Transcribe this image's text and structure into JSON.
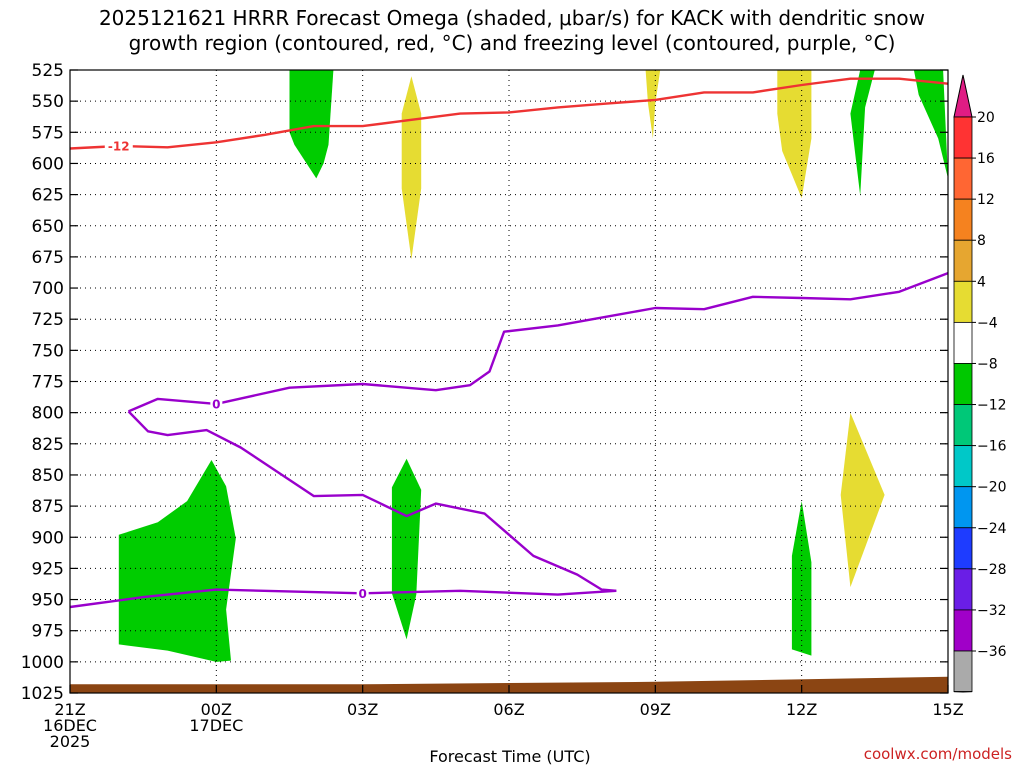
{
  "chart_data": {
    "type": "time-height cross section",
    "title": "2025121621 HRRR Forecast Omega (shaded, μbar/s) for KACK with dendritic snow",
    "title_line2": "growth region (contoured, red, °C) and freezing level (contoured, purple, °C)",
    "xlabel": "Forecast Time (UTC)",
    "credit": "coolwx.com/models",
    "x_unit": "hours after 21Z 16DEC 2025",
    "x_range": [
      0,
      18
    ],
    "x_ticks": [
      {
        "hour": 0,
        "lines": [
          "21Z",
          "16DEC",
          "2025"
        ]
      },
      {
        "hour": 3,
        "lines": [
          "00Z",
          "17DEC"
        ]
      },
      {
        "hour": 6,
        "lines": [
          "03Z"
        ]
      },
      {
        "hour": 9,
        "lines": [
          "06Z"
        ]
      },
      {
        "hour": 12,
        "lines": [
          "09Z"
        ]
      },
      {
        "hour": 15,
        "lines": [
          "12Z"
        ]
      },
      {
        "hour": 18,
        "lines": [
          "15Z"
        ]
      }
    ],
    "y_unit": "hPa",
    "y_range": [
      525,
      1025
    ],
    "y_ticks": [
      "525",
      "550",
      "575",
      "600",
      "625",
      "650",
      "675",
      "700",
      "725",
      "750",
      "775",
      "800",
      "825",
      "850",
      "875",
      "900",
      "925",
      "950",
      "975",
      "1000",
      "1025"
    ],
    "colorbar": {
      "labels": [
        "20",
        "16",
        "12",
        "8",
        "4",
        "−4",
        "−8",
        "−12",
        "−16",
        "−20",
        "−24",
        "−28",
        "−32",
        "−36"
      ],
      "colors": [
        "#ff3333",
        "#ff6633",
        "#f5821f",
        "#e6a630",
        "#e6dc32",
        "#ffffff",
        "#00c800",
        "#00c878",
        "#00c8c8",
        "#0096f0",
        "#1e3cff",
        "#6a1ee6",
        "#a000c8",
        "#aaaaaa"
      ],
      "top_cap_color": "#e01c84",
      "bottom_cap_color": "#000000"
    },
    "series": [
      {
        "name": "Red -12 C isotherm (DGZ boundary)",
        "color": "#ee3333",
        "label": "-12",
        "label_at": [
          1,
          586
        ],
        "points": [
          [
            0,
            588
          ],
          [
            1,
            586
          ],
          [
            2,
            587
          ],
          [
            3,
            583
          ],
          [
            4,
            577
          ],
          [
            5,
            570
          ],
          [
            6,
            570
          ],
          [
            7,
            565
          ],
          [
            8,
            560
          ],
          [
            9,
            559
          ],
          [
            10,
            555
          ],
          [
            11,
            552
          ],
          [
            12,
            549
          ],
          [
            13,
            543
          ],
          [
            14,
            543
          ],
          [
            15,
            537
          ],
          [
            16,
            532
          ],
          [
            17,
            532
          ],
          [
            18,
            536
          ]
        ]
      },
      {
        "name": "Freezing level 0 C (upper)",
        "color": "#9900cc",
        "label": "0",
        "label_at": [
          3,
          793
        ],
        "points": [
          [
            1.2,
            799
          ],
          [
            1.8,
            789
          ],
          [
            3,
            793
          ],
          [
            4.5,
            780
          ],
          [
            6,
            777
          ],
          [
            7.5,
            782
          ],
          [
            8.2,
            778
          ],
          [
            8.6,
            767
          ],
          [
            8.9,
            735
          ],
          [
            10,
            730
          ],
          [
            11,
            723
          ],
          [
            12,
            716
          ],
          [
            13,
            717
          ],
          [
            14,
            707
          ],
          [
            15,
            708
          ],
          [
            16,
            709
          ],
          [
            17,
            703
          ],
          [
            18,
            688
          ]
        ]
      },
      {
        "name": "Freezing level 0 C (lower)",
        "color": "#9900cc",
        "label": "0",
        "label_at": [
          6,
          945
        ],
        "points": [
          [
            1.2,
            799
          ],
          [
            1.6,
            815
          ],
          [
            2,
            818
          ],
          [
            2.8,
            814
          ],
          [
            3.5,
            828
          ],
          [
            5,
            867
          ],
          [
            6,
            866
          ],
          [
            6.9,
            883
          ],
          [
            7.5,
            873
          ],
          [
            8.5,
            881
          ],
          [
            9.5,
            915
          ],
          [
            10.4,
            930
          ],
          [
            10.9,
            942
          ],
          [
            11.2,
            943
          ]
        ]
      },
      {
        "name": "Freezing level 0 C (near surface)",
        "color": "#9900cc",
        "label": "0",
        "label_at": [
          6,
          945
        ],
        "points": [
          [
            0,
            956
          ],
          [
            1.5,
            948
          ],
          [
            3,
            942
          ],
          [
            6,
            945
          ],
          [
            8,
            943
          ],
          [
            10,
            946
          ],
          [
            11.2,
            943
          ]
        ]
      }
    ],
    "shaded_regions": [
      {
        "name": "Omega -4 to -8 near surface (21Z-00Z)",
        "value_range": [
          -8,
          -4
        ],
        "color": "#00cc00",
        "points": [
          [
            1,
            898
          ],
          [
            1.8,
            888
          ],
          [
            2.4,
            871
          ],
          [
            2.9,
            838
          ],
          [
            3.2,
            859
          ],
          [
            3.4,
            901
          ],
          [
            3.2,
            958
          ],
          [
            3.3,
            999
          ],
          [
            3,
            1000
          ],
          [
            2,
            991
          ],
          [
            1,
            986
          ]
        ]
      },
      {
        "name": "Omega -4 to -8 (05Z low)",
        "value_range": [
          -8,
          -4
        ],
        "color": "#00cc00",
        "points": [
          [
            6.9,
            837
          ],
          [
            7.2,
            862
          ],
          [
            7.1,
            946
          ],
          [
            6.9,
            982
          ],
          [
            6.6,
            945
          ],
          [
            6.6,
            860
          ]
        ]
      },
      {
        "name": "Omega -4 to -8 (12Z low)",
        "value_range": [
          -8,
          -4
        ],
        "color": "#00cc00",
        "points": [
          [
            15,
            871
          ],
          [
            15.2,
            920
          ],
          [
            15.2,
            995
          ],
          [
            14.8,
            990
          ],
          [
            14.8,
            915
          ]
        ]
      },
      {
        "name": "Omega -4 to -8 (03Z upper)",
        "value_range": [
          -8,
          -4
        ],
        "color": "#00cc00",
        "points": [
          [
            4.5,
            525
          ],
          [
            5.4,
            525
          ],
          [
            5.3,
            585
          ],
          [
            5.2,
            600
          ],
          [
            5.05,
            612
          ],
          [
            4.6,
            585
          ],
          [
            4.5,
            575
          ]
        ]
      },
      {
        "name": "Omega -4 to -8 (13Z upper)",
        "value_range": [
          -8,
          -4
        ],
        "color": "#00cc00",
        "points": [
          [
            16.2,
            525
          ],
          [
            16.5,
            525
          ],
          [
            16.3,
            555
          ],
          [
            16.2,
            626
          ],
          [
            16,
            560
          ]
        ]
      },
      {
        "name": "Omega -4 to -8 (14-15Z upper)",
        "value_range": [
          -8,
          -4
        ],
        "color": "#00cc00",
        "points": [
          [
            17.3,
            525
          ],
          [
            17.9,
            525
          ],
          [
            18,
            612
          ],
          [
            17.8,
            580
          ],
          [
            17.4,
            545
          ]
        ]
      },
      {
        "name": "Omega 4 to 8 (05Z upper)",
        "value_range": [
          4,
          8
        ],
        "color": "#e6dc32",
        "points": [
          [
            7,
            530
          ],
          [
            7.2,
            560
          ],
          [
            7.2,
            620
          ],
          [
            7,
            677
          ],
          [
            6.8,
            620
          ],
          [
            6.8,
            560
          ]
        ]
      },
      {
        "name": "Omega 4 to 8 (09Z upper)",
        "value_range": [
          4,
          8
        ],
        "color": "#e6dc32",
        "points": [
          [
            11.8,
            525
          ],
          [
            12.1,
            525
          ],
          [
            12,
            552
          ],
          [
            11.95,
            580
          ],
          [
            11.85,
            552
          ]
        ]
      },
      {
        "name": "Omega 4 to 8 (12Z upper)",
        "value_range": [
          4,
          8
        ],
        "color": "#e6dc32",
        "points": [
          [
            14.5,
            525
          ],
          [
            15.2,
            525
          ],
          [
            15.2,
            580
          ],
          [
            15,
            628
          ],
          [
            14.6,
            590
          ],
          [
            14.5,
            560
          ]
        ]
      },
      {
        "name": "Omega 4 to 8 (13Z low)",
        "value_range": [
          4,
          8
        ],
        "color": "#e6dc32",
        "points": [
          [
            16,
            800
          ],
          [
            16.7,
            866
          ],
          [
            16,
            940
          ],
          [
            15.8,
            866
          ]
        ]
      }
    ],
    "surface_pressure": {
      "color": "#8b4513",
      "points": [
        [
          0,
          1018
        ],
        [
          6,
          1018
        ],
        [
          12,
          1016
        ],
        [
          18,
          1012
        ]
      ]
    },
    "grid": true
  }
}
